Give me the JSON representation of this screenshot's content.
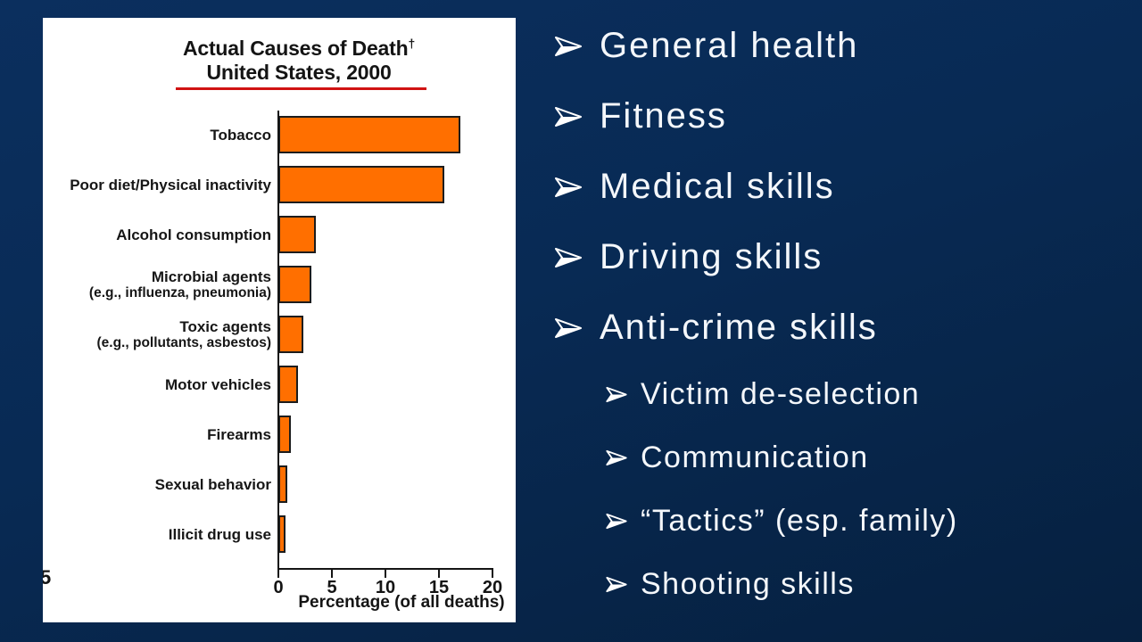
{
  "colors": {
    "background_top": "#0b2f5e",
    "background_bottom": "#06203f",
    "panel": "#ffffff",
    "bar_fill": "#ff6f00",
    "bar_border": "#1c1c1c",
    "title_underline": "#d01212",
    "text_light": "#f4f7fb"
  },
  "chart_data": {
    "type": "bar",
    "orientation": "horizontal",
    "title": "Actual Causes of Death",
    "title_dagger": "†",
    "subtitle": "United States, 2000",
    "xlabel": "Percentage (of all deaths)",
    "xticks": [
      0,
      5,
      10,
      15,
      20
    ],
    "xlim": [
      0,
      20
    ],
    "grid": false,
    "legend": false,
    "categories": [
      "Tobacco",
      "Poor diet/Physical inactivity",
      "Alcohol consumption",
      "Microbial agents",
      "Toxic agents",
      "Motor vehicles",
      "Firearms",
      "Sexual behavior",
      "Illicit drug use"
    ],
    "category_notes": {
      "Microbial agents": "(e.g., influenza, pneumonia)",
      "Toxic agents": "(e.g., pollutants, asbestos)"
    },
    "values": [
      17,
      15.5,
      3.5,
      3.1,
      2.3,
      1.8,
      1.2,
      0.8,
      0.7
    ],
    "clipped_stray_text": "5"
  },
  "bullets": {
    "main": [
      "General health",
      "Fitness",
      "Medical skills",
      "Driving skills",
      "Anti-crime skills"
    ],
    "sub": [
      "Victim de-selection",
      "Communication",
      "“Tactics” (esp. family)",
      "Shooting skills"
    ]
  }
}
